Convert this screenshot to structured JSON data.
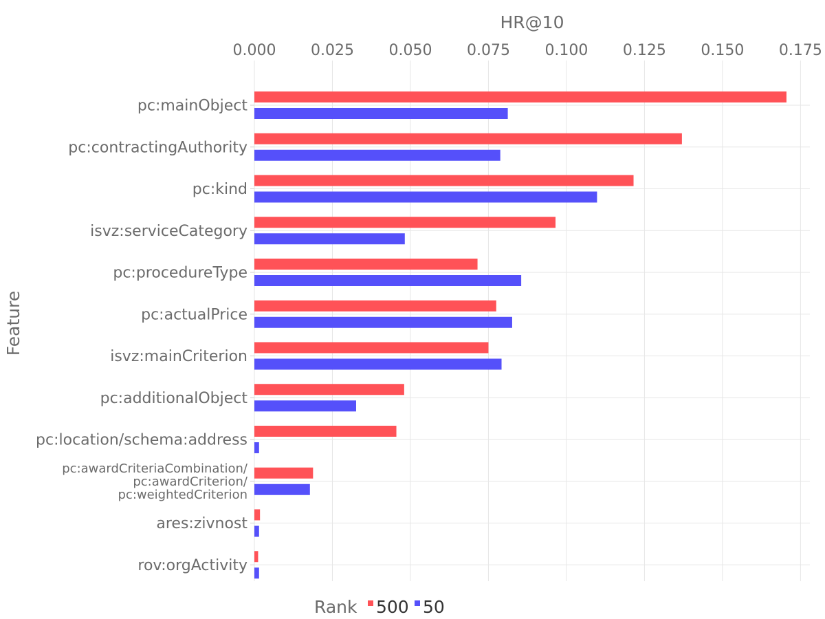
{
  "chart_data": {
    "type": "bar",
    "orientation": "horizontal",
    "x_axis_title": "HR@10",
    "x_axis_position": "top",
    "y_axis_title": "Feature",
    "xlim": [
      0,
      0.178
    ],
    "x_ticks": [
      0,
      0.025,
      0.05,
      0.075,
      0.1,
      0.125,
      0.15,
      0.175
    ],
    "x_tick_labels": [
      "0.000",
      "0.025",
      "0.050",
      "0.075",
      "0.100",
      "0.125",
      "0.150",
      "0.175"
    ],
    "grid": true,
    "categories": [
      [
        "pc:mainObject"
      ],
      [
        "pc:contractingAuthority"
      ],
      [
        "pc:kind"
      ],
      [
        "isvz:serviceCategory"
      ],
      [
        "pc:procedureType"
      ],
      [
        "pc:actualPrice"
      ],
      [
        "isvz:mainCriterion"
      ],
      [
        "pc:additionalObject"
      ],
      [
        "pc:location/schema:address"
      ],
      [
        "pc:awardCriteriaCombination/",
        "pc:awardCriterion/",
        "pc:weightedCriterion"
      ],
      [
        "ares:zivnost"
      ],
      [
        "rov:orgActivity"
      ]
    ],
    "series": [
      {
        "name": "500",
        "color": "#ff5257",
        "values": [
          0.1705,
          0.137,
          0.1215,
          0.0965,
          0.0715,
          0.0775,
          0.075,
          0.048,
          0.0455,
          0.0188,
          0.0018,
          0.0012
        ]
      },
      {
        "name": "50",
        "color": "#5550fa",
        "values": [
          0.0812,
          0.0788,
          0.1098,
          0.0482,
          0.0855,
          0.0826,
          0.0792,
          0.0326,
          0.0015,
          0.0178,
          0.0015,
          0.0015
        ]
      }
    ],
    "legend": {
      "title": "Rank",
      "position": "bottom",
      "orientation": "horizontal"
    }
  }
}
